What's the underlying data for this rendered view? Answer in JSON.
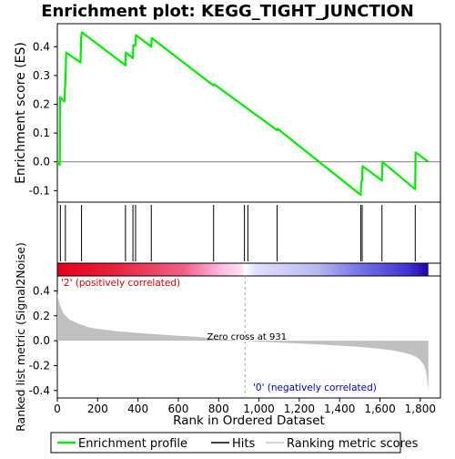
{
  "chart_data": {
    "type": "line",
    "title": "Enrichment plot: KEGG_TIGHT_JUNCTION",
    "panels": {
      "enrichment": {
        "ylabel": "Enrichment score (ES)",
        "ylim": [
          -0.14,
          0.48
        ],
        "yticks": [
          "0.4",
          "0.3",
          "0.2",
          "0.1",
          "0.0",
          "-0.1"
        ],
        "ytick_values": [
          0.4,
          0.3,
          0.2,
          0.1,
          0.0,
          -0.1
        ],
        "series": [
          {
            "name": "Enrichment profile",
            "color": "#00ee00",
            "x": [
              0,
              12,
              14,
              35,
              42,
              44,
              115,
              118,
              122,
              338,
              340,
              375,
              377,
              388,
              390,
              466,
              468,
              775,
              777,
              1090,
              1092,
              1505,
              1507,
              1512,
              1514,
              1610,
              1612,
              1775,
              1777,
              1840
            ],
            "y": [
              0.0,
              -0.01,
              0.225,
              0.21,
              0.32,
              0.38,
              0.345,
              0.43,
              0.45,
              0.335,
              0.38,
              0.36,
              0.405,
              0.405,
              0.44,
              0.4,
              0.43,
              0.265,
              0.27,
              0.11,
              0.115,
              -0.115,
              -0.07,
              -0.065,
              -0.015,
              -0.065,
              0.0,
              -0.095,
              0.033,
              0.0
            ]
          }
        ]
      },
      "hits": {
        "positions": [
          15,
          40,
          120,
          338,
          375,
          388,
          466,
          775,
          928,
          945,
          1090,
          1505,
          1512,
          1610,
          1775
        ]
      },
      "ranked_metric": {
        "ylabel": "Ranked list metric (Signal2Noise)",
        "ylim": [
          -0.46,
          0.52
        ],
        "yticks": [
          "0.4",
          "0.2",
          "0.0",
          "-0.2",
          "-0.4"
        ],
        "ytick_values": [
          0.4,
          0.2,
          0.0,
          -0.2,
          -0.4
        ],
        "xlabel": "Rank in Ordered Dataset",
        "xlim": [
          0,
          1900
        ],
        "xticks": [
          "0",
          "200",
          "400",
          "600",
          "800",
          "1,000",
          "1,200",
          "1,400",
          "1,600",
          "1,800"
        ],
        "xtick_values": [
          0,
          200,
          400,
          600,
          800,
          1000,
          1200,
          1400,
          1600,
          1800
        ],
        "metric_curve": {
          "x": [
            0,
            10,
            30,
            60,
            100,
            150,
            200,
            300,
            400,
            500,
            600,
            700,
            800,
            900,
            931,
            1000,
            1100,
            1200,
            1300,
            1400,
            1500,
            1600,
            1650,
            1700,
            1750,
            1780,
            1800,
            1820,
            1830,
            1840
          ],
          "y": [
            0.38,
            0.3,
            0.22,
            0.17,
            0.14,
            0.11,
            0.095,
            0.075,
            0.062,
            0.05,
            0.04,
            0.03,
            0.015,
            0.003,
            0.0,
            -0.008,
            -0.015,
            -0.022,
            -0.03,
            -0.04,
            -0.05,
            -0.065,
            -0.075,
            -0.09,
            -0.11,
            -0.13,
            -0.155,
            -0.2,
            -0.26,
            -0.4
          ]
        },
        "zero_cross": 931,
        "annotations": {
          "zero_cross_label": "Zero cross at 931",
          "positive_label": "'2' (positively correlated)",
          "negative_label": "'0' (negatively correlated)"
        }
      }
    },
    "legend": {
      "placement": "bottom",
      "items": [
        "Enrichment profile",
        "Hits",
        "Ranking metric scores"
      ]
    },
    "colors": {
      "profile": "#00ee00",
      "positive": "#dd0000",
      "negative": "#0000cc",
      "metric_fill": "#c0c0c0",
      "positive_label": "#dd0000",
      "negative_label": "#0000cc"
    }
  }
}
